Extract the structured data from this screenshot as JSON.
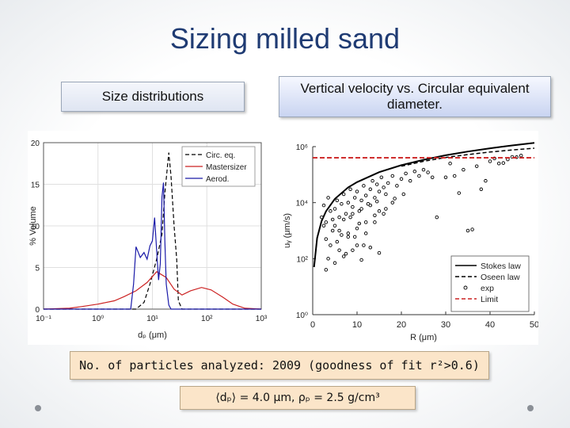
{
  "slide": {
    "title": "Sizing milled sand",
    "left_header": "Size distributions",
    "right_header": "Vertical velocity vs. Circular equivalent diameter.",
    "count_text": "No. of particles analyzed: 2009 (goodness of fit r²>0.6)",
    "formula_text": "⟨dₚ⟩ = 4.0 μm, ρₚ = 2.5 g/cm³"
  },
  "chart_data": [
    {
      "type": "line",
      "xscale": "log",
      "xlim": [
        0.1,
        1000
      ],
      "ylim": [
        0,
        20
      ],
      "xlabel": "dₚ (μm)",
      "ylabel": "% Volume",
      "x_tick_labels": [
        "10⁻¹",
        "10⁰",
        "10¹",
        "10²",
        "10³"
      ],
      "y_tick_labels": [
        "0",
        "5",
        "10",
        "15",
        "20"
      ],
      "grid": true,
      "legend_position": "top-right",
      "series": [
        {
          "name": "Circ. eq.",
          "color": "#000000",
          "dash": "dashed",
          "x": [
            0.1,
            5,
            7,
            9,
            12,
            15,
            17,
            20,
            22,
            25,
            28,
            30,
            35,
            1000
          ],
          "y": [
            0,
            0,
            0.8,
            3,
            6,
            9,
            14,
            18.8,
            16,
            10,
            6,
            1,
            0,
            0
          ]
        },
        {
          "name": "Mastersizer",
          "color": "#cc2222",
          "dash": "solid",
          "x": [
            0.1,
            0.3,
            0.5,
            1,
            2,
            3,
            5,
            8,
            12,
            18,
            25,
            35,
            50,
            80,
            120,
            200,
            300,
            500,
            1000
          ],
          "y": [
            0,
            0.1,
            0.3,
            0.6,
            1,
            1.5,
            2.2,
            3.2,
            4.5,
            3.8,
            2.4,
            1.7,
            2.2,
            2.6,
            2.3,
            1.4,
            0.6,
            0.1,
            0
          ]
        },
        {
          "name": "Aerod.",
          "color": "#1a1aa8",
          "dash": "solid",
          "x": [
            0.1,
            4,
            4.5,
            5,
            6,
            7,
            8,
            9,
            10,
            11,
            12,
            13,
            14,
            15,
            16,
            17,
            18,
            20,
            22,
            24,
            1000
          ],
          "y": [
            0,
            0,
            3,
            7.5,
            6.2,
            6.8,
            6,
            7.6,
            8.2,
            11,
            7,
            3.5,
            5.5,
            13.5,
            15.2,
            8,
            3,
            0.5,
            0,
            0,
            0
          ]
        }
      ]
    },
    {
      "type": "scatter",
      "yscale": "log",
      "xlim": [
        0,
        50
      ],
      "ylim": [
        1,
        1000000
      ],
      "xlabel": "R (μm)",
      "ylabel": "uᵧ (μm/s)",
      "x_tick_labels": [
        "0",
        "10",
        "20",
        "30",
        "40",
        "50"
      ],
      "y_tick_labels": [
        "10⁰",
        "10²",
        "10⁴",
        "10⁶"
      ],
      "grid": false,
      "legend_position": "bottom-right",
      "series": [
        {
          "name": "Stokes law",
          "color": "#000000",
          "dash": "solid",
          "kind": "line",
          "x": [
            0.3,
            1,
            2,
            3,
            5,
            8,
            10,
            15,
            20,
            25,
            30,
            35,
            40,
            45,
            50
          ],
          "y": [
            50,
            550,
            2200,
            4900,
            13600,
            35000,
            54000,
            123000,
            218000,
            340000,
            490000,
            667000,
            870000,
            1100000,
            1360000
          ]
        },
        {
          "name": "Oseen law",
          "color": "#000000",
          "dash": "dashed",
          "kind": "line",
          "x": [
            20,
            25,
            30,
            35,
            40,
            45,
            50
          ],
          "y": [
            200000,
            300000,
            410000,
            520000,
            640000,
            760000,
            880000
          ]
        },
        {
          "name": "exp",
          "color": "#000000",
          "kind": "points",
          "x": [
            2,
            2.5,
            3,
            3.5,
            4,
            4.5,
            5,
            5.5,
            6,
            6.5,
            7,
            7.5,
            8,
            8.5,
            9,
            9.5,
            10,
            10.5,
            11,
            11.5,
            12,
            12.5,
            13,
            13.5,
            14,
            14.5,
            15,
            15.5,
            16,
            16.5,
            17,
            18,
            19,
            20,
            21,
            22,
            23,
            24,
            25,
            26,
            27,
            3,
            4,
            5,
            6,
            7,
            8,
            9,
            10,
            11,
            12,
            13,
            14,
            15,
            3.5,
            5.5,
            7.5,
            9.5,
            11.5,
            2.5,
            4.5,
            6.5,
            8.5,
            10.5,
            12.5,
            14.5,
            16.5,
            18.5,
            20.5,
            3,
            5,
            7,
            9,
            11,
            13,
            15,
            6,
            8,
            10,
            12,
            14,
            16,
            18,
            30,
            32,
            34,
            37,
            38,
            40,
            42,
            44,
            46,
            35,
            36,
            33,
            41,
            39,
            43,
            45,
            47,
            31,
            28
          ],
          "y": [
            3000,
            8000,
            2000,
            15000,
            5000,
            1000,
            6000,
            12000,
            3000,
            9000,
            20000,
            4000,
            10000,
            30000,
            7000,
            15000,
            25000,
            5000,
            12000,
            40000,
            18000,
            9000,
            30000,
            60000,
            15000,
            45000,
            25000,
            80000,
            35000,
            20000,
            50000,
            90000,
            40000,
            70000,
            110000,
            60000,
            130000,
            90000,
            150000,
            120000,
            80000,
            500,
            300,
            1500,
            200,
            2500,
            800,
            4000,
            1200,
            6000,
            2000,
            8000,
            3500,
            5000,
            100,
            400,
            150,
            600,
            300,
            1500,
            2500,
            700,
            3000,
            1800,
            9000,
            11000,
            6000,
            14000,
            20000,
            40,
            70,
            120,
            200,
            90,
            250,
            160,
            1000,
            600,
            300,
            800,
            2000,
            4000,
            10000,
            80000,
            90000,
            150000,
            200000,
            30000,
            300000,
            250000,
            350000,
            420000,
            1000,
            1100,
            22000,
            380000,
            60000,
            260000,
            430000,
            480000,
            250000,
            3000
          ]
        },
        {
          "name": "Limit",
          "color": "#cc2222",
          "dash": "dashed",
          "kind": "hline",
          "y": 400000
        }
      ]
    }
  ]
}
